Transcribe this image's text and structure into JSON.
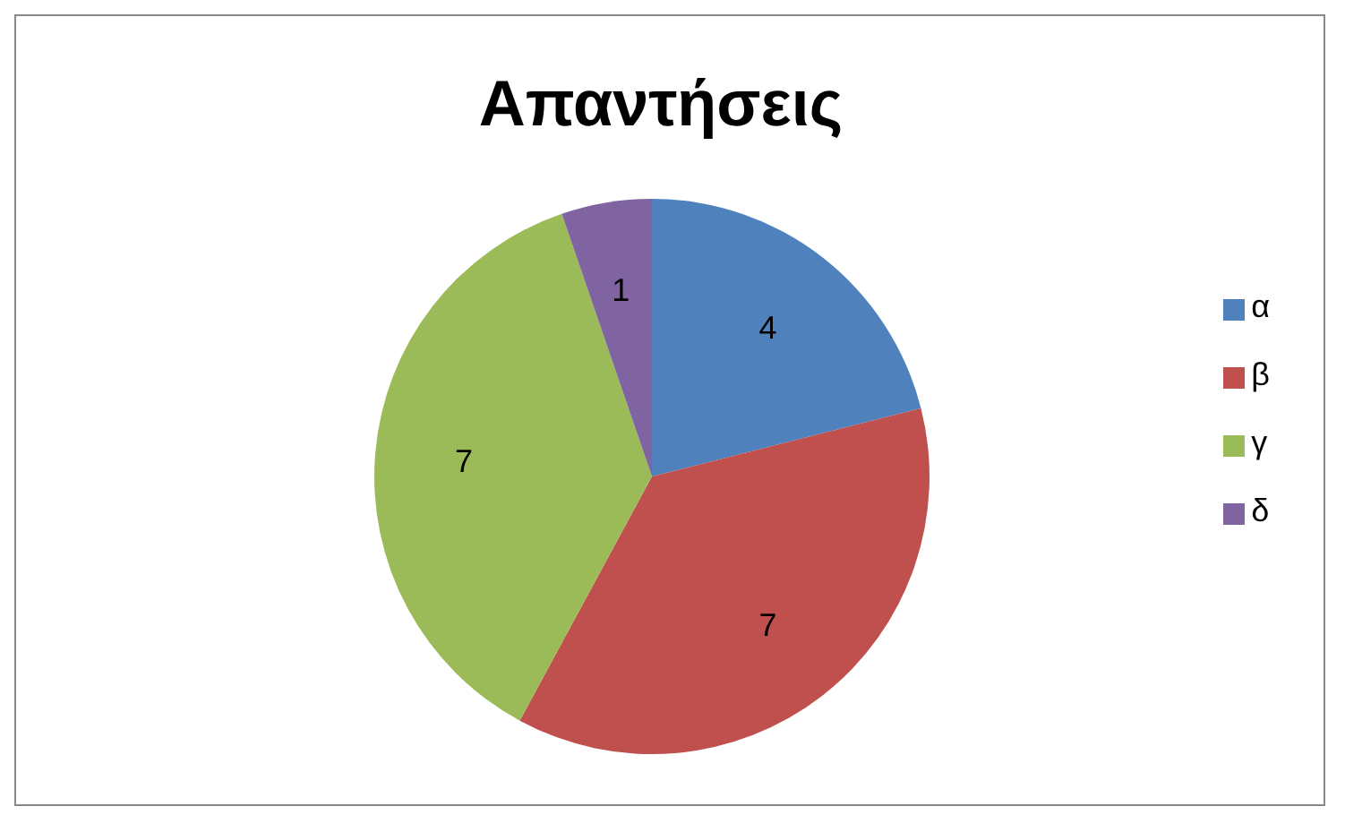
{
  "chart_data": {
    "type": "pie",
    "title": "Απαντήσεις",
    "categories": [
      "α",
      "β",
      "γ",
      "δ"
    ],
    "values": [
      4,
      7,
      7,
      1
    ],
    "colors": [
      "#4f81bd",
      "#c0504d",
      "#9bbb59",
      "#8064a2"
    ],
    "data_labels": true,
    "legend": "right"
  }
}
